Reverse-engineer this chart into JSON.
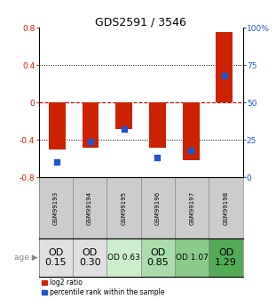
{
  "title": "GDS2591 / 3546",
  "samples": [
    "GSM99193",
    "GSM99194",
    "GSM99195",
    "GSM99196",
    "GSM99197",
    "GSM99198"
  ],
  "log2_ratio": [
    -0.5,
    -0.48,
    -0.28,
    -0.48,
    -0.62,
    0.75
  ],
  "percentile_rank": [
    10,
    24,
    32,
    13,
    18,
    68
  ],
  "bar_color": "#cc2200",
  "dot_color": "#2255cc",
  "ylim": [
    -0.8,
    0.8
  ],
  "right_yticks": [
    0,
    25,
    50,
    75,
    100
  ],
  "right_ylabels": [
    "0",
    "25",
    "50",
    "75",
    "100%"
  ],
  "left_yticks": [
    -0.8,
    -0.4,
    0,
    0.4,
    0.8
  ],
  "hline_color": "#cc0000",
  "dotline_color": "black",
  "age_labels": [
    "OD\n0.15",
    "OD\n0.30",
    "OD 0.63",
    "OD\n0.85",
    "OD 1.07",
    "OD\n1.29"
  ],
  "age_bg_colors": [
    "#e0e0e0",
    "#e0e0e0",
    "#cceecc",
    "#aaddaa",
    "#88cc88",
    "#55aa55"
  ],
  "age_fontsizes": [
    8,
    8,
    6.5,
    8,
    6.5,
    8
  ],
  "bg_color": "#ffffff",
  "left_label_color": "#cc2200",
  "right_label_color": "#2255cc",
  "bar_width": 0.5,
  "dot_size": 25
}
